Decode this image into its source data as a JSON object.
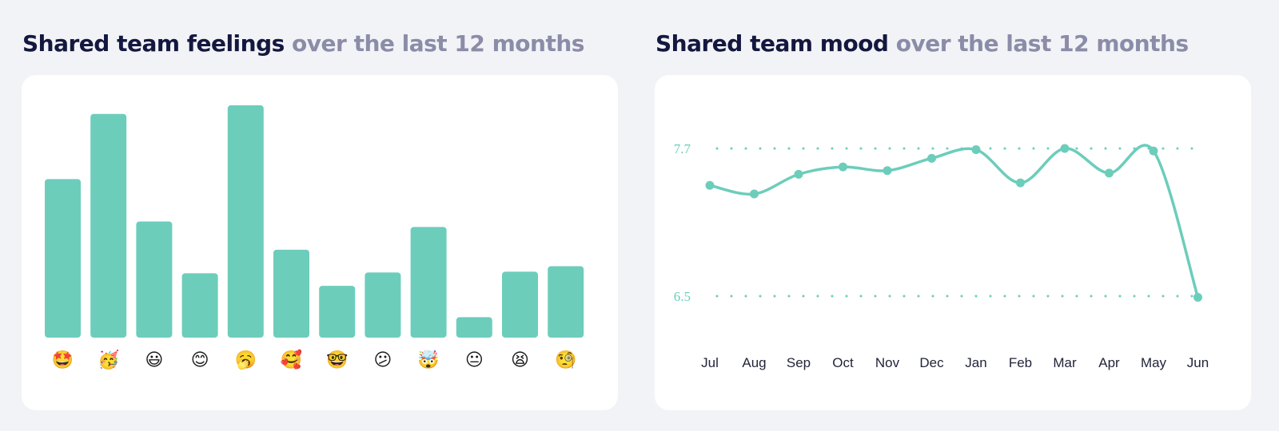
{
  "left_panel": {
    "title_main": "Shared team feelings",
    "title_sub": "over the last 12 months"
  },
  "right_panel": {
    "title_main": "Shared team mood",
    "title_sub": "over the last 12 months"
  },
  "colors": {
    "accent": "#6ccdbb",
    "title": "#14183f",
    "subtitle": "#8a8ca8",
    "background": "#f2f3f6",
    "card": "#ffffff"
  },
  "chart_data": [
    {
      "type": "bar",
      "categories": [
        "star-struck",
        "partying",
        "grinning",
        "smiling",
        "yawning",
        "smiling-with-hearts",
        "nerd",
        "confused",
        "exploding-head",
        "neutral",
        "tired",
        "monocle"
      ],
      "category_icons": [
        "🤩",
        "🥳",
        "😃",
        "😊",
        "🥱",
        "🥰",
        "🤓",
        "😕",
        "🤯",
        "😐",
        "😫",
        "🧐"
      ],
      "values": [
        202,
        285,
        148,
        82,
        296,
        112,
        66,
        83,
        141,
        26,
        84,
        91
      ],
      "ylim": [
        0,
        300
      ],
      "grid": false,
      "legend": "none"
    },
    {
      "type": "line",
      "categories": [
        "Jul",
        "Aug",
        "Sep",
        "Oct",
        "Nov",
        "Dec",
        "Jan",
        "Feb",
        "Mar",
        "Apr",
        "May",
        "Jun"
      ],
      "values": [
        7.4,
        7.33,
        7.49,
        7.55,
        7.52,
        7.62,
        7.69,
        7.42,
        7.7,
        7.5,
        7.68,
        6.49
      ],
      "yticks": [
        7.7,
        6.5
      ],
      "ylim": [
        6.5,
        7.7
      ],
      "grid": "dotted-horizontal",
      "legend": "none"
    }
  ]
}
